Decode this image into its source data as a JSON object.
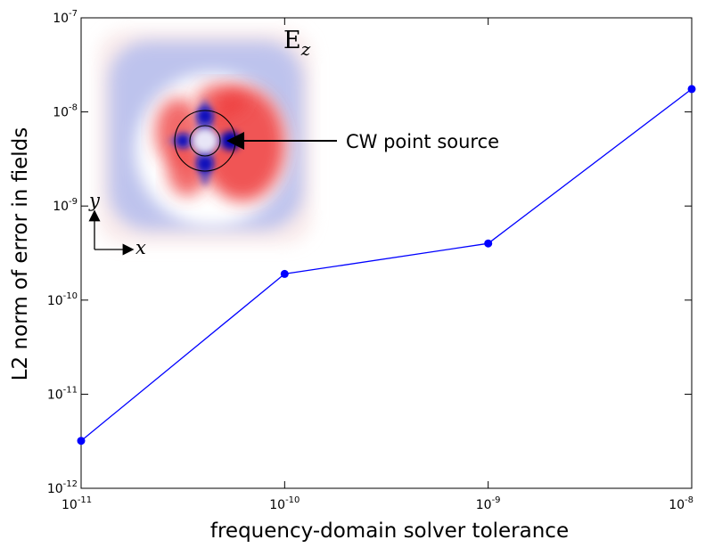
{
  "chart_data": {
    "type": "line",
    "xlabel": "frequency-domain solver tolerance",
    "ylabel": "L2 norm of error in fields",
    "x_scale": "log",
    "y_scale": "log",
    "xlim": [
      1e-11,
      1e-08
    ],
    "ylim": [
      1e-12,
      1e-07
    ],
    "x_ticks": [
      {
        "base": "10",
        "exp": "-11",
        "value": 1e-11
      },
      {
        "base": "10",
        "exp": "-10",
        "value": 1e-10
      },
      {
        "base": "10",
        "exp": "-9",
        "value": 1e-09
      },
      {
        "base": "10",
        "exp": "-8",
        "value": 1e-08
      }
    ],
    "y_ticks": [
      {
        "base": "10",
        "exp": "-12",
        "value": 1e-12
      },
      {
        "base": "10",
        "exp": "-11",
        "value": 1e-11
      },
      {
        "base": "10",
        "exp": "-10",
        "value": 1e-10
      },
      {
        "base": "10",
        "exp": "-9",
        "value": 1e-09
      },
      {
        "base": "10",
        "exp": "-8",
        "value": 1e-08
      },
      {
        "base": "10",
        "exp": "-7",
        "value": 1e-07
      }
    ],
    "series": [
      {
        "color": "#0000ff",
        "x": [
          1e-11,
          1e-10,
          1e-09,
          1e-08
        ],
        "y": [
          3.2e-12,
          1.9e-10,
          4e-10,
          1.75e-08
        ]
      }
    ],
    "grid": false,
    "inset": {
      "field_label": "E",
      "field_subscript": "z",
      "annotation": "CW point source",
      "axis_x": "x",
      "axis_y": "y",
      "colors": {
        "positive": "#ff0000",
        "negative": "#0000ff"
      }
    }
  }
}
